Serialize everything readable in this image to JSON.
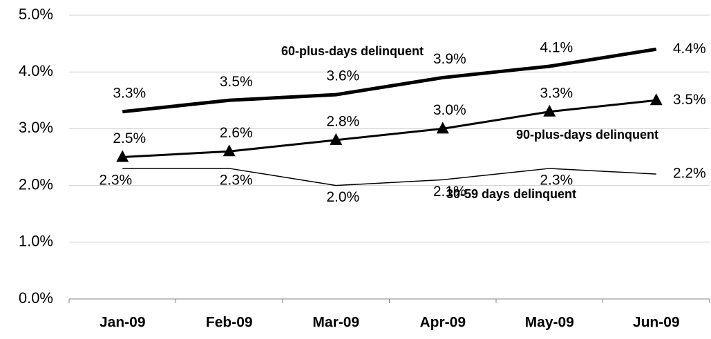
{
  "chart_data": {
    "type": "line",
    "categories": [
      "Jan-09",
      "Feb-09",
      "Mar-09",
      "Apr-09",
      "May-09",
      "Jun-09"
    ],
    "series": [
      {
        "name": "60-plus-days delinquent",
        "color": "#000000",
        "values": [
          3.3,
          3.5,
          3.6,
          3.9,
          4.1,
          4.4
        ],
        "value_labels": [
          "3.3%",
          "3.5%",
          "3.6%",
          "3.9%",
          "4.1%",
          "4.4%"
        ]
      },
      {
        "name": "90-plus-days delinquent",
        "color": "#000000",
        "marker": "triangle",
        "values": [
          2.5,
          2.6,
          2.8,
          3.0,
          3.3,
          3.5
        ],
        "value_labels": [
          "2.5%",
          "2.6%",
          "2.8%",
          "3.0%",
          "3.3%",
          "3.5%"
        ]
      },
      {
        "name": "30-59 days delinquent",
        "color": "#000000",
        "values": [
          2.3,
          2.3,
          2.0,
          2.1,
          2.3,
          2.2
        ],
        "value_labels": [
          "2.3%",
          "2.3%",
          "2.0%",
          "2.1%",
          "2.3%",
          "2.2%"
        ]
      }
    ],
    "ylim": [
      0,
      5
    ],
    "yticks": [
      {
        "value": 0,
        "label": "0.0%"
      },
      {
        "value": 1,
        "label": "1.0%"
      },
      {
        "value": 2,
        "label": "2.0%"
      },
      {
        "value": 3,
        "label": "3.0%"
      },
      {
        "value": 4,
        "label": "4.0%"
      },
      {
        "value": 5,
        "label": "5.0%"
      }
    ],
    "grid": true
  }
}
